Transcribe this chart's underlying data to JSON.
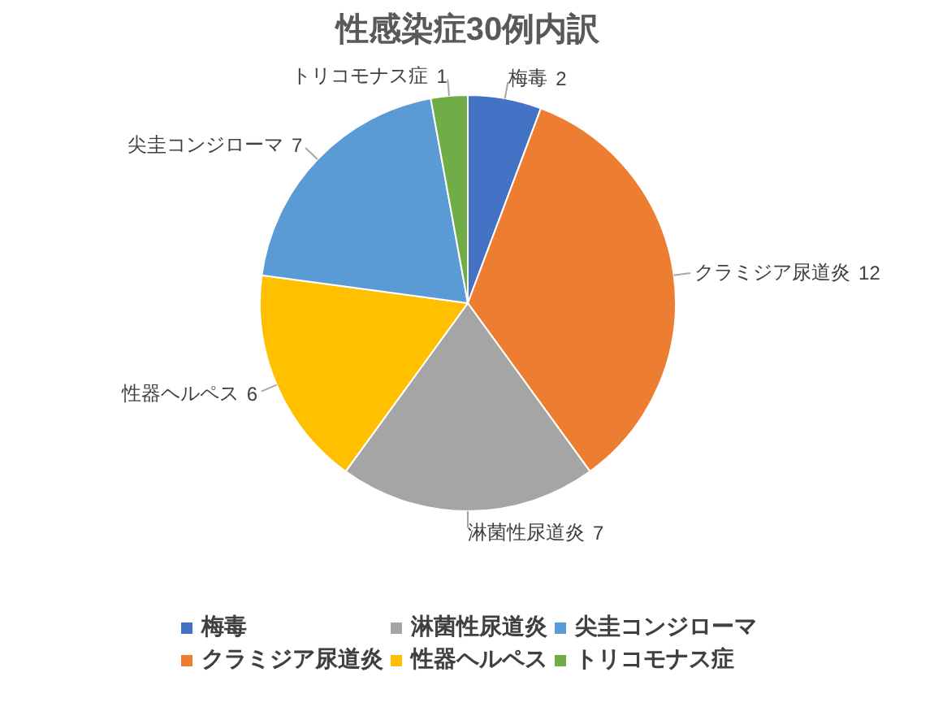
{
  "chart_data": {
    "type": "pie",
    "title": "性感染症30例内訳",
    "categories": [
      "梅毒",
      "クラミジア尿道炎",
      "淋菌性尿道炎",
      "性器ヘルペス",
      "尖圭コンジローマ",
      "トリコモナス症"
    ],
    "values": [
      2,
      12,
      7,
      6,
      7,
      1
    ],
    "colors": [
      "#4472c4",
      "#ed7d31",
      "#a5a5a5",
      "#ffc000",
      "#5b9bd5",
      "#70ad47"
    ],
    "data_labels": true,
    "legend": "bottom"
  }
}
